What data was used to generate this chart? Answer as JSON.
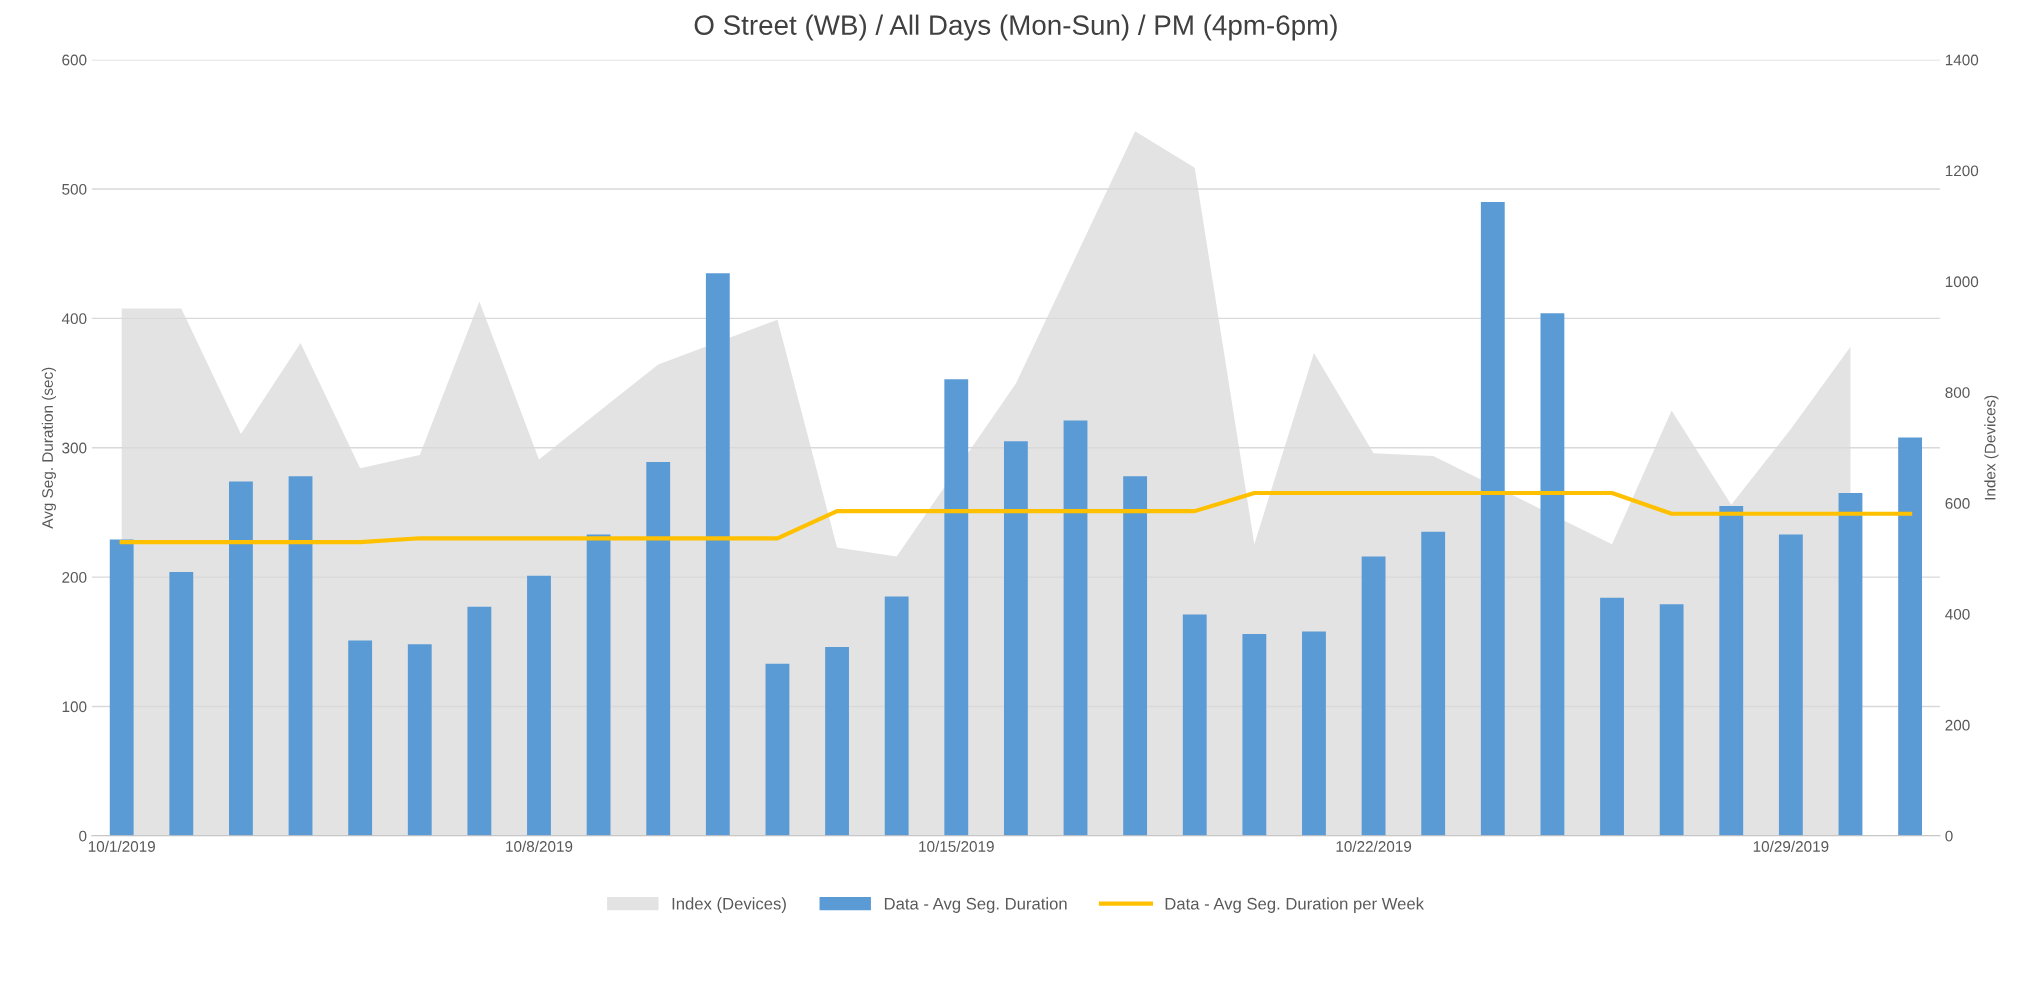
{
  "chart_data": {
    "type": "bar",
    "title": "O Street (WB) / All Days (Mon-Sun) / PM (4pm-6pm)",
    "categories": [
      "10/1/2019",
      null,
      null,
      null,
      null,
      null,
      null,
      "10/8/2019",
      null,
      null,
      null,
      null,
      null,
      null,
      "10/15/2019",
      null,
      null,
      null,
      null,
      null,
      null,
      "10/22/2019",
      null,
      null,
      null,
      null,
      null,
      null,
      "10/29/2019",
      null,
      null
    ],
    "ylabel": "Avg Seg. Duration (sec)",
    "y2label": "Index (Devices)",
    "ylim": [
      0,
      600
    ],
    "yticks": [
      0,
      100,
      200,
      300,
      400,
      500,
      600
    ],
    "y2lim": [
      0,
      1400
    ],
    "y2ticks": [
      0,
      200,
      400,
      600,
      800,
      1000,
      1200,
      1400
    ],
    "grid": "y",
    "legend": "bottom",
    "series": [
      {
        "name": "Index (Devices)",
        "type": "area",
        "axis": "y2",
        "color": "#e3e3e3",
        "values": [
          951,
          951,
          725,
          889,
          663,
          687,
          964,
          679,
          765,
          850,
          null,
          931,
          520,
          504,
          null,
          816,
          null,
          1271,
          1205,
          526,
          871,
          690,
          685,
          null,
          null,
          526,
          767,
          597,
          734,
          882,
          null
        ]
      },
      {
        "name": "Data - Avg Seg. Duration",
        "color": "#5b9bd5",
        "values": [
          229,
          204,
          274,
          278,
          151,
          148,
          177,
          201,
          233,
          289,
          435,
          133,
          146,
          185,
          353,
          305,
          321,
          278,
          171,
          156,
          158,
          216,
          235,
          490,
          404,
          184,
          179,
          255,
          233,
          265,
          308
        ]
      },
      {
        "name": "Data - Avg Seg. Duration per Week",
        "type": "line",
        "color": "#ffc000",
        "values": [
          227,
          227,
          227,
          227,
          227,
          230,
          230,
          230,
          230,
          230,
          230,
          230,
          251,
          251,
          251,
          251,
          251,
          251,
          251,
          265,
          265,
          265,
          265,
          265,
          265,
          265,
          249,
          249,
          249,
          249,
          249
        ]
      }
    ]
  }
}
